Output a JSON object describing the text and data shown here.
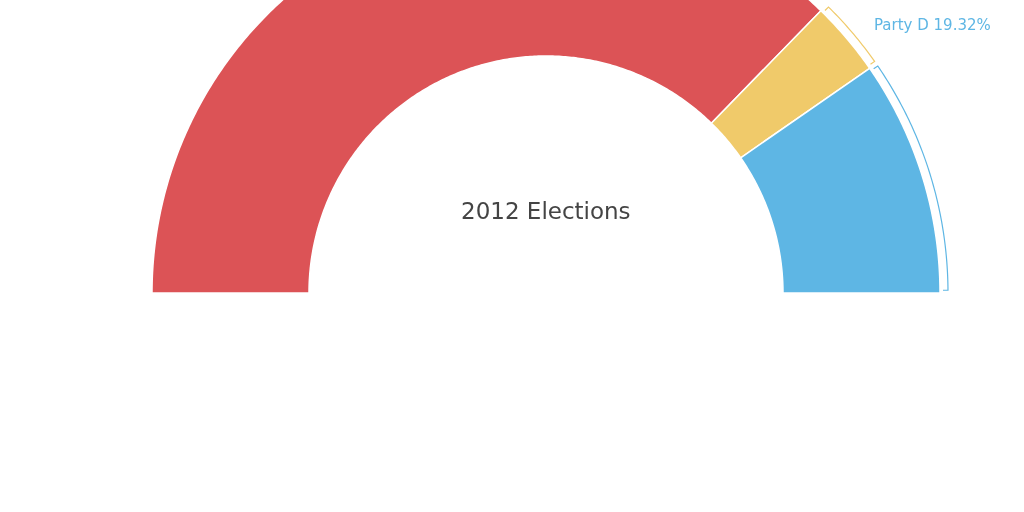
{
  "chart_data": {
    "type": "donut",
    "title": "2012 Elections",
    "categories": [
      null,
      null,
      "Party D"
    ],
    "values": [
      74.58,
      6.1,
      19.32
    ],
    "value_labels": [
      null,
      null,
      "19.32%"
    ],
    "colors": [
      "#dc5356",
      "#f0ca6a",
      "#5eb6e4"
    ]
  }
}
